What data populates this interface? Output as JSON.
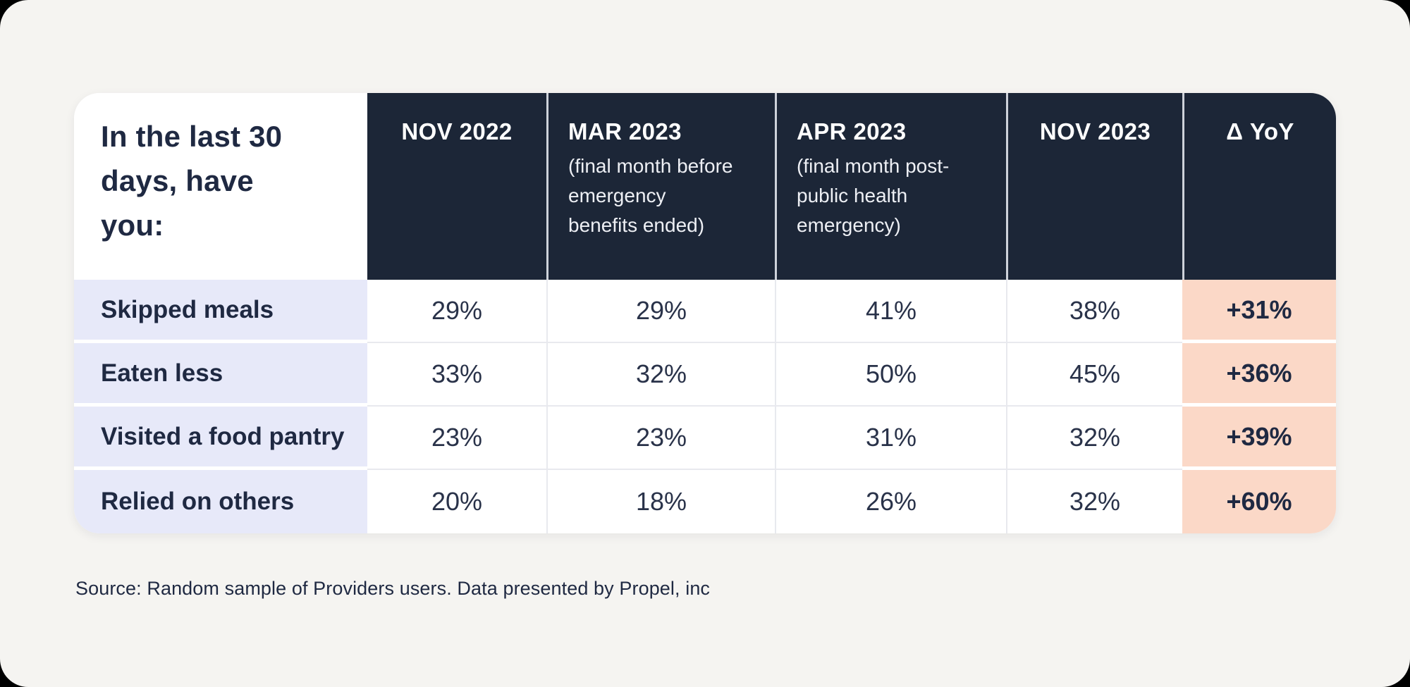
{
  "header": {
    "title": "In the last 30 days, have you:",
    "cols": [
      {
        "label": "NOV 2022",
        "sub": ""
      },
      {
        "label": "MAR 2023",
        "sub": "(final month before emergency benefits ended)"
      },
      {
        "label": "APR 2023",
        "sub": "(final month post-public health emergency)"
      },
      {
        "label": "NOV 2023",
        "sub": ""
      },
      {
        "label": "Δ YoY",
        "sub": ""
      }
    ]
  },
  "rows": [
    {
      "label": "Skipped meals",
      "values": [
        "29%",
        "29%",
        "41%",
        "38%"
      ],
      "delta": "+31%"
    },
    {
      "label": "Eaten less",
      "values": [
        "33%",
        "32%",
        "50%",
        "45%"
      ],
      "delta": "+36%"
    },
    {
      "label": "Visited a food pantry",
      "values": [
        "23%",
        "23%",
        "31%",
        "32%"
      ],
      "delta": "+39%"
    },
    {
      "label": "Relied on others",
      "values": [
        "20%",
        "18%",
        "26%",
        "32%"
      ],
      "delta": "+60%"
    }
  ],
  "source": "Source: Random sample of Providers users. Data presented by Propel, inc",
  "colors": {
    "page_background": "#f5f4f1",
    "header_navy": "#1c2637",
    "label_lavender": "#e7e9f9",
    "delta_peach": "#fbd8c7",
    "text_navy": "#1f2942",
    "cell_white": "#ffffff"
  },
  "chart_data": {
    "type": "table",
    "title": "In the last 30 days, have you:",
    "columns": [
      "NOV 2022",
      "MAR 2023 (final month before emergency benefits ended)",
      "APR 2023 (final month post-public health emergency)",
      "NOV 2023",
      "Δ YoY"
    ],
    "rows": [
      {
        "label": "Skipped meals",
        "values": [
          "29%",
          "29%",
          "41%",
          "38%",
          "+31%"
        ]
      },
      {
        "label": "Eaten less",
        "values": [
          "33%",
          "32%",
          "50%",
          "45%",
          "+36%"
        ]
      },
      {
        "label": "Visited a food pantry",
        "values": [
          "23%",
          "23%",
          "31%",
          "32%",
          "+39%"
        ]
      },
      {
        "label": "Relied on others",
        "values": [
          "20%",
          "18%",
          "26%",
          "32%",
          "+60%"
        ]
      }
    ],
    "source": "Source: Random sample of Providers users. Data presented by Propel, inc"
  }
}
